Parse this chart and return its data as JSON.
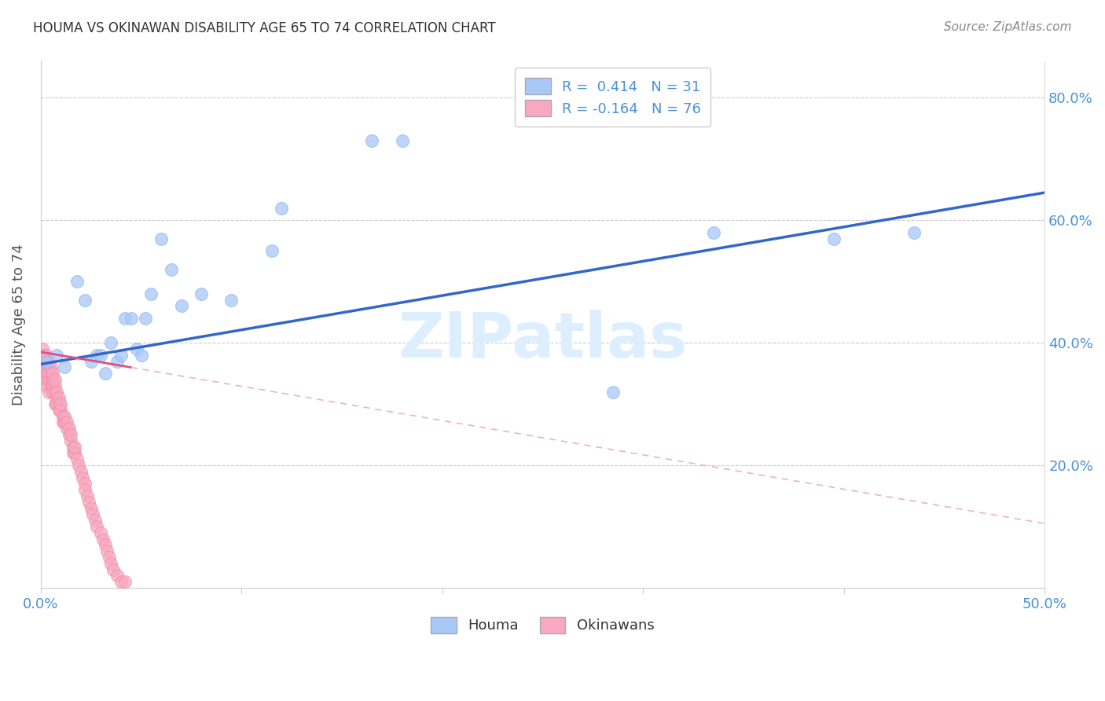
{
  "title": "HOUMA VS OKINAWAN DISABILITY AGE 65 TO 74 CORRELATION CHART",
  "source": "Source: ZipAtlas.com",
  "ylabel": "Disability Age 65 to 74",
  "xlim": [
    0.0,
    0.5
  ],
  "ylim": [
    0.0,
    0.86
  ],
  "xtick_positions": [
    0.0,
    0.1,
    0.2,
    0.3,
    0.4,
    0.5
  ],
  "xtick_labels": [
    "0.0%",
    "",
    "",
    "",
    "",
    "50.0%"
  ],
  "ytick_positions": [
    0.2,
    0.4,
    0.6,
    0.8
  ],
  "ytick_labels": [
    "20.0%",
    "40.0%",
    "60.0%",
    "80.0%"
  ],
  "houma_R": 0.414,
  "houma_N": 31,
  "okinawa_R": -0.164,
  "okinawa_N": 76,
  "houma_color": "#a8c8f8",
  "okinawa_color": "#f8a8c0",
  "houma_edge_color": "#90b8f0",
  "okinawa_edge_color": "#f090a8",
  "houma_line_color": "#3366cc",
  "okinawa_line_color": "#e05080",
  "okinawa_dash_color": "#f0b0c8",
  "watermark_color": "#ddeeff",
  "houma_x": [
    0.003,
    0.008,
    0.012,
    0.018,
    0.022,
    0.025,
    0.028,
    0.03,
    0.032,
    0.035,
    0.038,
    0.04,
    0.042,
    0.045,
    0.048,
    0.05,
    0.052,
    0.055,
    0.06,
    0.065,
    0.07,
    0.08,
    0.095,
    0.115,
    0.12,
    0.165,
    0.18,
    0.285,
    0.335,
    0.395,
    0.435
  ],
  "houma_y": [
    0.37,
    0.38,
    0.36,
    0.5,
    0.47,
    0.37,
    0.38,
    0.38,
    0.35,
    0.4,
    0.37,
    0.38,
    0.44,
    0.44,
    0.39,
    0.38,
    0.44,
    0.48,
    0.57,
    0.52,
    0.46,
    0.48,
    0.47,
    0.55,
    0.62,
    0.73,
    0.73,
    0.32,
    0.58,
    0.57,
    0.58
  ],
  "okinawa_x": [
    0.001,
    0.001,
    0.001,
    0.001,
    0.001,
    0.002,
    0.002,
    0.002,
    0.002,
    0.002,
    0.003,
    0.003,
    0.003,
    0.003,
    0.003,
    0.004,
    0.004,
    0.004,
    0.004,
    0.004,
    0.005,
    0.005,
    0.005,
    0.005,
    0.006,
    0.006,
    0.006,
    0.006,
    0.007,
    0.007,
    0.007,
    0.007,
    0.008,
    0.008,
    0.008,
    0.009,
    0.009,
    0.009,
    0.01,
    0.01,
    0.011,
    0.011,
    0.012,
    0.012,
    0.013,
    0.013,
    0.014,
    0.014,
    0.015,
    0.015,
    0.016,
    0.016,
    0.017,
    0.017,
    0.018,
    0.019,
    0.02,
    0.021,
    0.022,
    0.022,
    0.023,
    0.024,
    0.025,
    0.026,
    0.027,
    0.028,
    0.03,
    0.031,
    0.032,
    0.033,
    0.034,
    0.035,
    0.036,
    0.038,
    0.04,
    0.042
  ],
  "okinawa_y": [
    0.38,
    0.35,
    0.36,
    0.37,
    0.39,
    0.35,
    0.36,
    0.37,
    0.38,
    0.34,
    0.36,
    0.37,
    0.38,
    0.35,
    0.33,
    0.36,
    0.37,
    0.34,
    0.35,
    0.32,
    0.34,
    0.35,
    0.36,
    0.33,
    0.33,
    0.34,
    0.35,
    0.32,
    0.33,
    0.34,
    0.32,
    0.3,
    0.31,
    0.32,
    0.3,
    0.3,
    0.31,
    0.29,
    0.29,
    0.3,
    0.28,
    0.27,
    0.27,
    0.28,
    0.26,
    0.27,
    0.25,
    0.26,
    0.24,
    0.25,
    0.23,
    0.22,
    0.22,
    0.23,
    0.21,
    0.2,
    0.19,
    0.18,
    0.17,
    0.16,
    0.15,
    0.14,
    0.13,
    0.12,
    0.11,
    0.1,
    0.09,
    0.08,
    0.07,
    0.06,
    0.05,
    0.04,
    0.03,
    0.02,
    0.01,
    0.01
  ],
  "houma_line_x0": 0.0,
  "houma_line_y0": 0.365,
  "houma_line_x1": 0.5,
  "houma_line_y1": 0.645,
  "okinawa_line_x0": 0.0,
  "okinawa_line_y0": 0.385,
  "okinawa_line_x1": 0.5,
  "okinawa_line_y1": 0.105
}
